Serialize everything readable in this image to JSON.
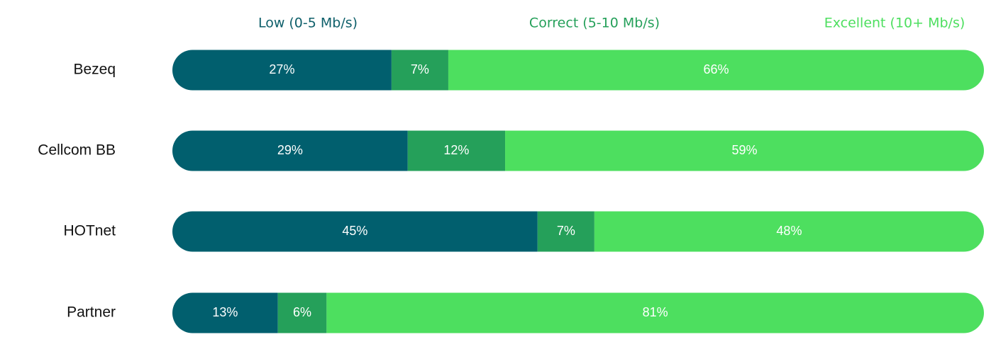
{
  "chart_data": {
    "type": "bar",
    "orientation": "horizontal",
    "stacked": true,
    "percent_stacked": true,
    "title": "",
    "xlabel": "",
    "ylabel": "",
    "xlim": [
      0,
      100
    ],
    "grid": false,
    "legend_position": "top",
    "categories": [
      "Bezeq",
      "Cellcom BB",
      "HOTnet",
      "Partner"
    ],
    "series": [
      {
        "name": "Low (0-5 Mb/s)",
        "color": "#015f6e",
        "values": [
          27,
          29,
          45,
          13
        ],
        "labels": [
          "27%",
          "29%",
          "45%",
          "13%"
        ]
      },
      {
        "name": "Correct (5-10 Mb/s)",
        "color": "#25a05a",
        "values": [
          7,
          12,
          7,
          6
        ],
        "labels": [
          "7%",
          "12%",
          "7%",
          "6%"
        ]
      },
      {
        "name": "Excellent (10+ Mb/s)",
        "color": "#4ddf5f",
        "values": [
          66,
          59,
          48,
          81
        ],
        "labels": [
          "66%",
          "59%",
          "48%",
          "81%"
        ]
      }
    ],
    "legend_text_colors": [
      "#0e5f6a",
      "#25a05a",
      "#4ddf5f"
    ]
  }
}
